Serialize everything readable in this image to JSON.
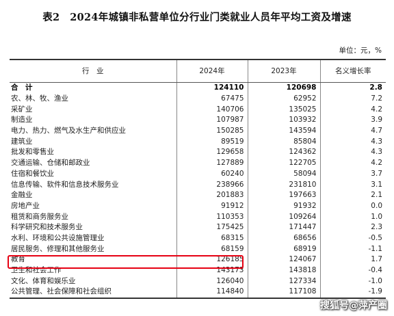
{
  "title": "表2　2024年城镇非私营单位分行业门类就业人员年平均工资及增速",
  "unit": "单位：元，%",
  "headers": [
    "行　业",
    "2024年",
    "2023年",
    "名义增长率"
  ],
  "rows": [
    [
      "合　计",
      "124110",
      "120698",
      "2.8"
    ],
    [
      "农、林、牧、渔业",
      "67475",
      "62952",
      "7.2"
    ],
    [
      "采矿业",
      "140706",
      "135025",
      "4.2"
    ],
    [
      "制造业",
      "107987",
      "103932",
      "3.9"
    ],
    [
      "电力、热力、燃气及水生产和供应业",
      "150285",
      "143594",
      "4.7"
    ],
    [
      "建筑业",
      "89519",
      "85804",
      "4.3"
    ],
    [
      "批发和零售业",
      "129658",
      "124362",
      "4.3"
    ],
    [
      "交通运输、仓储和邮政业",
      "127889",
      "122705",
      "4.2"
    ],
    [
      "住宿和餐饮业",
      "60240",
      "58094",
      "3.7"
    ],
    [
      "信息传输、软件和信息技术服务业",
      "238966",
      "231810",
      "3.1"
    ],
    [
      "金融业",
      "201883",
      "197663",
      "2.1"
    ],
    [
      "房地产业",
      "91912",
      "91932",
      "0.0"
    ],
    [
      "租赁和商务服务业",
      "110353",
      "109264",
      "1.0"
    ],
    [
      "科学研究和技术服务业",
      "175425",
      "171447",
      "2.3"
    ],
    [
      "水利、环境和公共设施管理业",
      "68315",
      "68656",
      "-0.5"
    ],
    [
      "居民服务、修理和其他服务业",
      "68159",
      "68919",
      "-1.1"
    ],
    [
      "教育",
      "126185",
      "124067",
      "1.7"
    ],
    [
      "卫生和社会工作",
      "143173",
      "143818",
      "-0.4"
    ],
    [
      "文化、体育和娱乐业",
      "126040",
      "127334",
      "-1.0"
    ],
    [
      "公共管理、社会保障和社会组织",
      "114840",
      "117108",
      "-1.9"
    ]
  ],
  "watermark": "搜狐号@萍产圈",
  "colors": {
    "highlight": "#e60012"
  }
}
